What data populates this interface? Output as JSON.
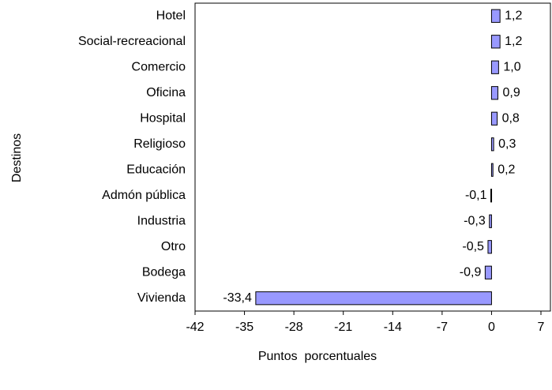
{
  "chart_data": {
    "type": "bar",
    "orientation": "horizontal",
    "categories": [
      "Hotel",
      "Social-recreacional",
      "Comercio",
      "Oficina",
      "Hospital",
      "Religioso",
      "Educación",
      "Admón pública",
      "Industria",
      "Otro",
      "Bodega",
      "Vivienda"
    ],
    "values": [
      1.2,
      1.2,
      1.0,
      0.9,
      0.8,
      0.3,
      0.2,
      -0.1,
      -0.3,
      -0.5,
      -0.9,
      -33.4
    ],
    "value_labels": [
      "1,2",
      "1,2",
      "1,0",
      "0,9",
      "0,8",
      "0,3",
      "0,2",
      "-0,1",
      "-0,3",
      "-0,5",
      "-0,9",
      "-33,4"
    ],
    "color": "#9999ff",
    "xlim": [
      -42,
      7
    ],
    "xticks": [
      -42,
      -35,
      -28,
      -21,
      -14,
      -7,
      0,
      7
    ],
    "xlabel": "Puntos  porcentuales",
    "ylabel": "Destinos"
  }
}
